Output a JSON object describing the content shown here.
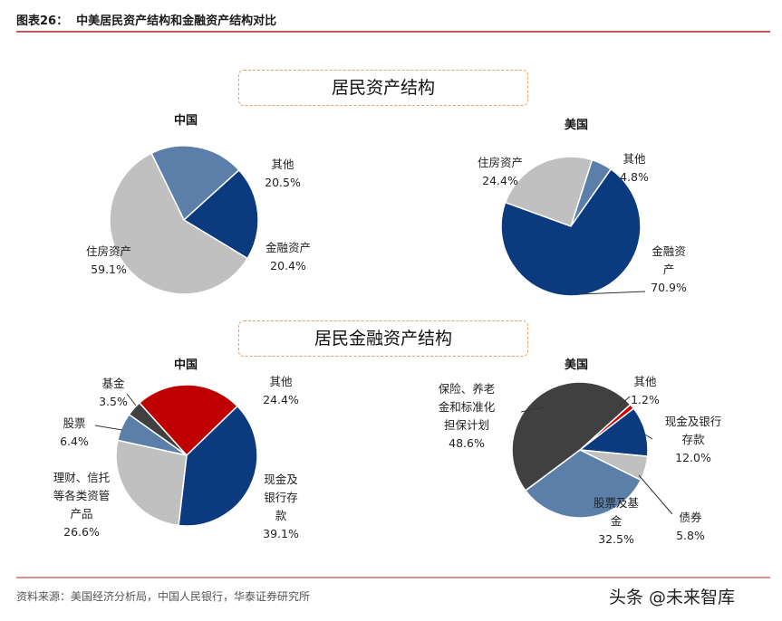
{
  "header": {
    "title": "图表26：  中美居民资产结构和金融资产结构对比"
  },
  "sections": [
    "居民资产结构",
    "居民金融资产结构"
  ],
  "chart_data": [
    {
      "type": "pie",
      "title": "中国",
      "categories": [
        "其他",
        "金融资产",
        "住房资产"
      ],
      "values": [
        20.5,
        20.4,
        59.1
      ],
      "value_labels": [
        "20.5%",
        "20.4%",
        "59.1%"
      ],
      "colors": [
        "#5b7fa8",
        "#0b3a7e",
        "#c0c0c0"
      ]
    },
    {
      "type": "pie",
      "title": "美国",
      "categories": [
        "住房资产",
        "其他",
        "金融资产"
      ],
      "values": [
        24.4,
        4.8,
        70.9
      ],
      "value_labels": [
        "24.4%",
        "4.8%",
        "70.9%"
      ],
      "colors": [
        "#c0c0c0",
        "#5b7fa8",
        "#0b3a7e"
      ]
    },
    {
      "type": "pie",
      "title": "中国",
      "categories": [
        "其他",
        "现金及银行存款",
        "理财、信托等各类资管产品",
        "股票",
        "基金"
      ],
      "values": [
        24.4,
        39.1,
        26.6,
        6.4,
        3.5
      ],
      "value_labels": [
        "24.4%",
        "39.1%",
        "26.6%",
        "6.4%",
        "3.5%"
      ],
      "colors": [
        "#c00000",
        "#0b3a7e",
        "#c0c0c0",
        "#5b7fa8",
        "#404040"
      ]
    },
    {
      "type": "pie",
      "title": "美国",
      "categories": [
        "其他",
        "现金及银行存款",
        "债券",
        "股票及基金",
        "保险、养老金和标准化担保计划"
      ],
      "values": [
        1.2,
        12.0,
        5.8,
        32.5,
        48.6
      ],
      "value_labels": [
        "1.2%",
        "12.0%",
        "5.8%",
        "32.5%",
        "48.6%"
      ],
      "colors": [
        "#d00000",
        "#0b3a7e",
        "#c0c0c0",
        "#5b7fa8",
        "#404040"
      ]
    }
  ],
  "source": "资料来源：美国经济分析局，中国人民银行，华泰证券研究所",
  "watermark": "头条 @未来智库"
}
